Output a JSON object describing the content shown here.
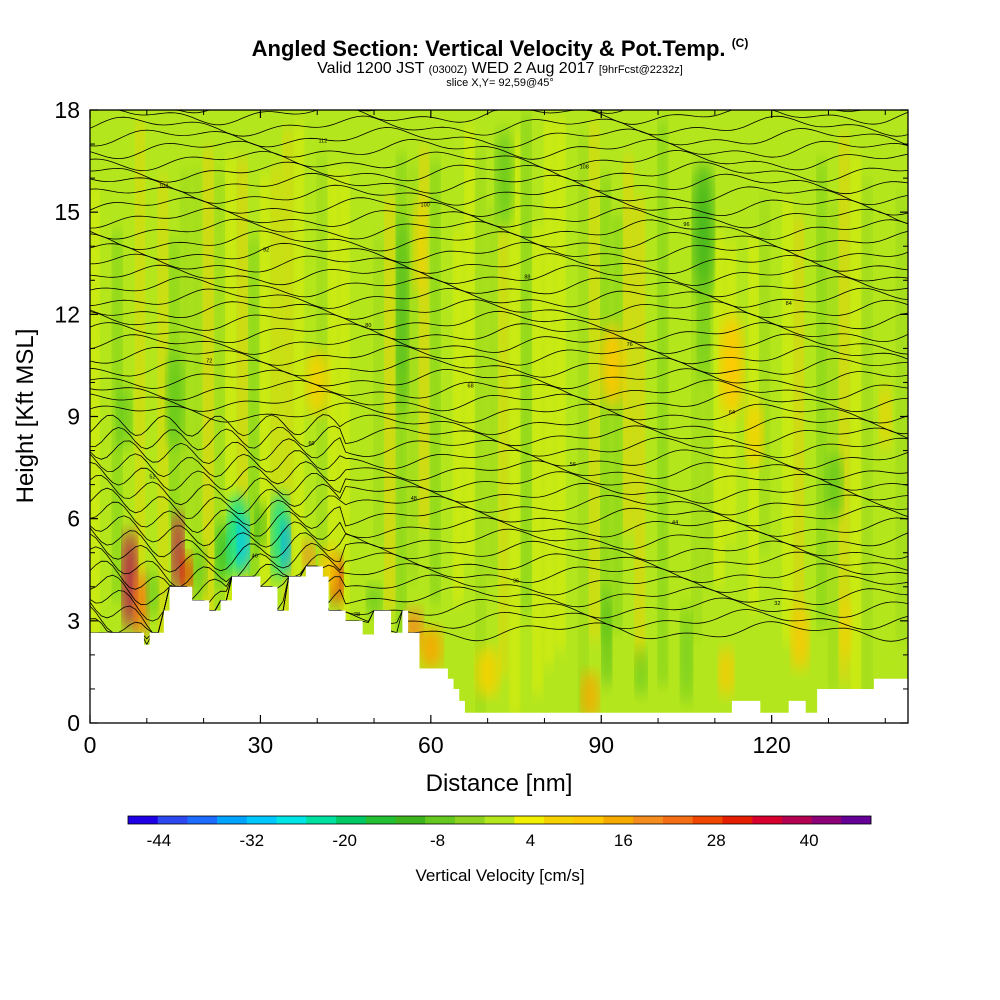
{
  "title": {
    "main": "Angled Section: Vertical Velocity & Pot.Temp.",
    "main_unit": "(C)",
    "valid_prefix": "Valid 1200 JST",
    "valid_utc": "(0300Z)",
    "valid_date": "WED 2 Aug 2017",
    "forecast": "[9hrFcst@2232z]",
    "slice": "slice X,Y= 92,59@45°"
  },
  "chart_data": {
    "type": "heatmap",
    "xlabel": "Distance [nm]",
    "ylabel": "Height [Kft MSL]",
    "xlim": [
      0,
      144
    ],
    "ylim": [
      0,
      18
    ],
    "x_ticks": [
      0,
      30,
      60,
      90,
      120
    ],
    "y_ticks": [
      0,
      3,
      6,
      9,
      12,
      15,
      18
    ],
    "field": "Vertical Velocity",
    "contour_field": "Potential Temperature (C)",
    "terrain_kft": [
      [
        0,
        2.65
      ],
      [
        9.5,
        2.65
      ],
      [
        9.5,
        2.3
      ],
      [
        10.5,
        2.3
      ],
      [
        10.5,
        2.65
      ],
      [
        13,
        2.65
      ],
      [
        13,
        3.3
      ],
      [
        14,
        3.3
      ],
      [
        14,
        4.0
      ],
      [
        18,
        4.0
      ],
      [
        18,
        3.6
      ],
      [
        21,
        3.6
      ],
      [
        21,
        3.3
      ],
      [
        23,
        3.3
      ],
      [
        23,
        3.6
      ],
      [
        25,
        3.6
      ],
      [
        25,
        4.3
      ],
      [
        30,
        4.3
      ],
      [
        30,
        4.0
      ],
      [
        33,
        4.0
      ],
      [
        33,
        3.3
      ],
      [
        35,
        3.3
      ],
      [
        35,
        4.3
      ],
      [
        38,
        4.3
      ],
      [
        38,
        4.6
      ],
      [
        41,
        4.6
      ],
      [
        41,
        4.3
      ],
      [
        42,
        4.3
      ],
      [
        42,
        3.3
      ],
      [
        45,
        3.3
      ],
      [
        45,
        3.0
      ],
      [
        48,
        3.0
      ],
      [
        48,
        2.6
      ],
      [
        50,
        2.6
      ],
      [
        50,
        3.3
      ],
      [
        53,
        3.3
      ],
      [
        53,
        2.65
      ],
      [
        55,
        2.65
      ],
      [
        55,
        3.3
      ],
      [
        56,
        3.3
      ],
      [
        56,
        2.65
      ],
      [
        58,
        2.65
      ],
      [
        58,
        1.6
      ],
      [
        63,
        1.6
      ],
      [
        63,
        1.3
      ],
      [
        64,
        1.3
      ],
      [
        64,
        1.0
      ],
      [
        65,
        1.0
      ],
      [
        65,
        0.65
      ],
      [
        66,
        0.65
      ],
      [
        66,
        0.3
      ],
      [
        113,
        0.3
      ],
      [
        113,
        0.65
      ],
      [
        118,
        0.65
      ],
      [
        118,
        0.3
      ],
      [
        123,
        0.3
      ],
      [
        123,
        0.65
      ],
      [
        126,
        0.65
      ],
      [
        126,
        0.3
      ],
      [
        128,
        0.3
      ],
      [
        128,
        1.0
      ],
      [
        138,
        1.0
      ],
      [
        138,
        1.3
      ],
      [
        144,
        1.3
      ]
    ],
    "features": [
      {
        "x": 7,
        "z": 4.2,
        "w": 2.5,
        "h": 3.0,
        "value": 40
      },
      {
        "x": 9,
        "z": 3.5,
        "w": 2.5,
        "h": 2.0,
        "value": 26
      },
      {
        "x": 11,
        "z": 3.8,
        "w": 2.0,
        "h": 1.5,
        "value": -8
      },
      {
        "x": 15.5,
        "z": 5.0,
        "w": 2.0,
        "h": 2.5,
        "value": 42
      },
      {
        "x": 17,
        "z": 4.4,
        "w": 2.0,
        "h": 1.2,
        "value": 34
      },
      {
        "x": 19.5,
        "z": 4.5,
        "w": 2.0,
        "h": 1.5,
        "value": -6
      },
      {
        "x": 23.5,
        "z": 5.0,
        "w": 2.5,
        "h": 1.8,
        "value": -14
      },
      {
        "x": 26,
        "z": 5.5,
        "w": 3.5,
        "h": 2.5,
        "value": -22
      },
      {
        "x": 27,
        "z": 5.3,
        "w": 2.0,
        "h": 1.5,
        "value": -30
      },
      {
        "x": 33.5,
        "z": 5.5,
        "w": 3.0,
        "h": 2.6,
        "value": -24
      },
      {
        "x": 34.5,
        "z": 5.2,
        "w": 1.6,
        "h": 1.6,
        "value": -34
      },
      {
        "x": 30,
        "z": 5.8,
        "w": 1.8,
        "h": 1.5,
        "value": -10
      },
      {
        "x": 38.5,
        "z": 4.9,
        "w": 2.0,
        "h": 1.0,
        "value": 20
      },
      {
        "x": 43.5,
        "z": 4.2,
        "w": 2.0,
        "h": 1.5,
        "value": 34
      },
      {
        "x": 42,
        "z": 4.5,
        "w": 3.0,
        "h": 1.5,
        "value": 14
      },
      {
        "x": 50,
        "z": 3.6,
        "w": 2.5,
        "h": 1.0,
        "value": -6
      },
      {
        "x": 57,
        "z": 2.8,
        "w": 3.0,
        "h": 1.2,
        "value": 20
      },
      {
        "x": 60,
        "z": 2.2,
        "w": 4.0,
        "h": 1.3,
        "value": 16
      },
      {
        "x": 55,
        "z": 12.0,
        "w": 2.0,
        "h": 6.0,
        "value": -10
      },
      {
        "x": 58,
        "z": 14.0,
        "w": 2.0,
        "h": 3.0,
        "value": 10
      },
      {
        "x": 92,
        "z": 10.5,
        "w": 4.0,
        "h": 2.5,
        "value": 14
      },
      {
        "x": 108,
        "z": 14.5,
        "w": 3.5,
        "h": 4.0,
        "value": -10
      },
      {
        "x": 108,
        "z": 11.5,
        "w": 2.0,
        "h": 3.0,
        "value": -6
      },
      {
        "x": 113,
        "z": 10.5,
        "w": 4.0,
        "h": 3.0,
        "value": 12
      },
      {
        "x": 117,
        "z": 8.5,
        "w": 3.0,
        "h": 2.0,
        "value": 9
      },
      {
        "x": 40,
        "z": 10.0,
        "w": 4.0,
        "h": 2.0,
        "value": 8
      },
      {
        "x": 70,
        "z": 1.5,
        "w": 4.0,
        "h": 1.5,
        "value": 10
      },
      {
        "x": 88,
        "z": 0.8,
        "w": 3.0,
        "h": 1.5,
        "value": 18
      },
      {
        "x": 97,
        "z": 1.5,
        "w": 2.0,
        "h": 1.5,
        "value": -6
      },
      {
        "x": 91,
        "z": 2.5,
        "w": 1.6,
        "h": 3.0,
        "value": -10
      },
      {
        "x": 105,
        "z": 2.0,
        "w": 2.0,
        "h": 3.0,
        "value": -8
      },
      {
        "x": 112,
        "z": 1.5,
        "w": 2.5,
        "h": 1.5,
        "value": 12
      },
      {
        "x": 125,
        "z": 2.5,
        "w": 3.0,
        "h": 2.0,
        "value": 12
      },
      {
        "x": 133,
        "z": 2.8,
        "w": 2.0,
        "h": 2.0,
        "value": 8
      },
      {
        "x": 131,
        "z": 7.0,
        "w": 3.0,
        "h": 2.0,
        "value": -6
      },
      {
        "x": 15,
        "z": 9.5,
        "w": 3.0,
        "h": 3.0,
        "value": -6
      },
      {
        "x": 6,
        "z": 9.0,
        "w": 2.5,
        "h": 2.0,
        "value": -6
      },
      {
        "x": 73,
        "z": 16.0,
        "w": 3.0,
        "h": 3.0,
        "value": -6
      },
      {
        "x": 140,
        "z": 9.0,
        "w": 2.0,
        "h": 2.0,
        "value": 9
      }
    ],
    "theta_contours_c": [
      26,
      28,
      30,
      32,
      34,
      36,
      38,
      40,
      42,
      44,
      46,
      48,
      50,
      52,
      54,
      56,
      58,
      60,
      62,
      64,
      66,
      68,
      70,
      72,
      74,
      76,
      78,
      80,
      82,
      84,
      86,
      88,
      90,
      92,
      94,
      96,
      98,
      100,
      102,
      104,
      106,
      108,
      110,
      112,
      114,
      116,
      118
    ],
    "colorbar": {
      "label": "Vertical Velocity [cm/s]",
      "tick_labels": [
        "-44",
        "-32",
        "-20",
        "-8",
        "4",
        "16",
        "28",
        "40"
      ],
      "boundaries": [
        -48,
        -44,
        -40,
        -36,
        -32,
        -28,
        -24,
        -20,
        -16,
        -12,
        -8,
        -4,
        0,
        4,
        8,
        12,
        16,
        20,
        24,
        28,
        32,
        36,
        40,
        44,
        48
      ],
      "colors": [
        "#1e00e6",
        "#2d48f0",
        "#1c6cff",
        "#00a4ff",
        "#00c8ff",
        "#00e6e6",
        "#00e0a0",
        "#00c864",
        "#22c032",
        "#3cb41e",
        "#64c81e",
        "#8cd21e",
        "#b4e61e",
        "#f0f000",
        "#f5d200",
        "#ffc800",
        "#f5aa00",
        "#f58c1e",
        "#f56e14",
        "#f04600",
        "#e61e00",
        "#d7002d",
        "#b40050",
        "#8c0078",
        "#640096"
      ]
    }
  }
}
